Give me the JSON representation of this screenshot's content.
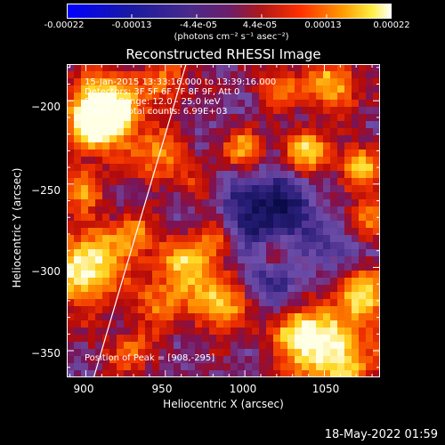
{
  "colorbar": {
    "ticks": [
      "-0.00022",
      "-0.00013",
      "-4.4e-05",
      "4.4e-05",
      "0.00013",
      "0.00022"
    ],
    "unit_label": "(photons cm⁻² s⁻¹ asec⁻²)"
  },
  "chart_data": {
    "type": "heatmap",
    "title": "Reconstructed RHESSI Image",
    "xlabel": "Heliocentric X (arcsec)",
    "ylabel": "Heliocentric Y (arcsec)",
    "xlim": [
      888,
      1085
    ],
    "ylim": [
      -366,
      -178
    ],
    "x_ticks": [
      900,
      950,
      1000,
      1050
    ],
    "y_ticks": [
      -200,
      -250,
      -300,
      -350
    ],
    "x_tick_labels": [
      "900",
      "950",
      "1000",
      "1050"
    ],
    "y_tick_labels": [
      "−200",
      "−250",
      "−300",
      "−350"
    ],
    "color_range": [
      -0.00022,
      0.00022
    ],
    "limb_line": [
      [
        905,
        -366
      ],
      [
        963,
        -178
      ]
    ],
    "peak_position": [
      908,
      -295
    ]
  },
  "info": {
    "line1": "15-Jan-2015 13:33:16.000 to 13:39:16.000",
    "line2": "Detectors: 3F 5F 6F 7F 8F 9F, Att 0",
    "line3": "Energy Range: 12.0 - 25.0 keV",
    "line4": "Clean     Total counts: 6.99E+03",
    "peak": "Position of Peak = [908,-295]"
  },
  "footer": {
    "date": "18-May-2022 01:59"
  }
}
